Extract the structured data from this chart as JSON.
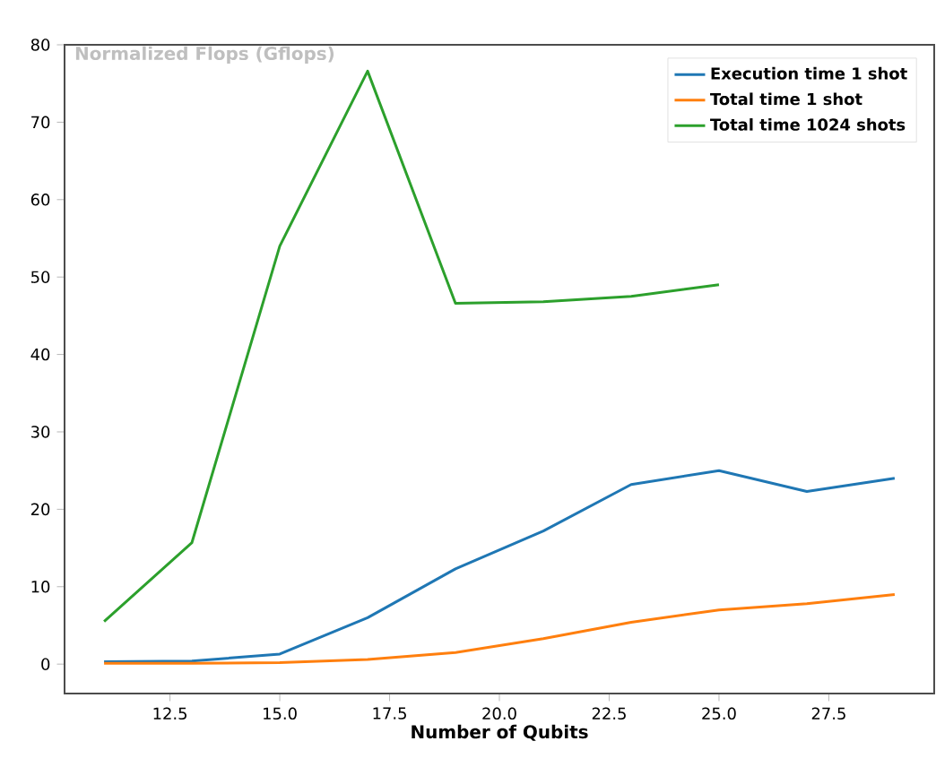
{
  "chart_data": {
    "type": "line",
    "ylabel": "Normalized Flops (Gflops)",
    "xlabel": "Number of Qubits",
    "x": [
      11,
      13,
      15,
      17,
      19,
      21,
      23,
      25,
      27,
      29
    ],
    "xlim": [
      10.1,
      29.9
    ],
    "xticks": [
      {
        "value": 12.5,
        "label": "12.5"
      },
      {
        "value": 15,
        "label": "15.0"
      },
      {
        "value": 17.5,
        "label": "17.5"
      },
      {
        "value": 20,
        "label": "20.0"
      },
      {
        "value": 22.5,
        "label": "22.5"
      },
      {
        "value": 25,
        "label": "25.0"
      },
      {
        "value": 27.5,
        "label": "27.5"
      }
    ],
    "ylim": [
      -3.8,
      80
    ],
    "yticks": [
      0,
      10,
      20,
      30,
      40,
      50,
      60,
      70,
      80
    ],
    "series": [
      {
        "name": "Execution time 1 shot",
        "color": "#1f77b4",
        "values": [
          0.3,
          0.4,
          1.3,
          6,
          12.3,
          17.2,
          23.2,
          25,
          22.3,
          24
        ]
      },
      {
        "name": "Total time 1 shot",
        "color": "#ff7f0e",
        "values": [
          0.1,
          0.1,
          0.2,
          0.6,
          1.5,
          3.3,
          5.4,
          7,
          7.8,
          9
        ]
      },
      {
        "name": "Total time 1024 shots",
        "color": "#2ca02c",
        "x": [
          11,
          13,
          15,
          17,
          19,
          21,
          23,
          25
        ],
        "values": [
          5.5,
          15.7,
          54,
          76.6,
          46.6,
          46.8,
          47.5,
          49
        ]
      }
    ],
    "legend": "top right",
    "grid": false
  }
}
